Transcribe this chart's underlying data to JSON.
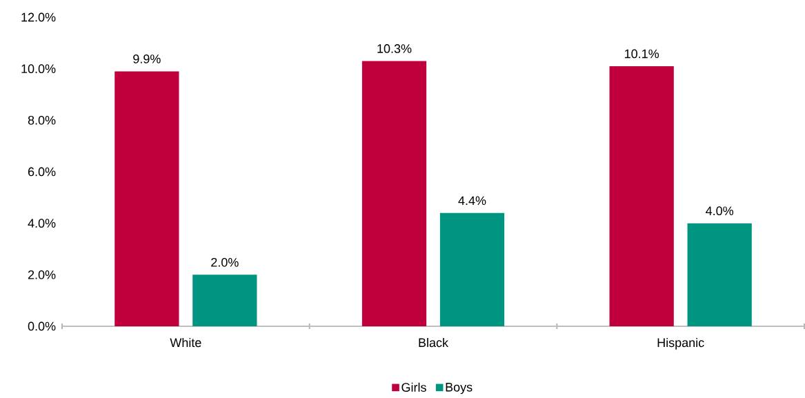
{
  "chart_data": {
    "type": "bar",
    "categories": [
      "White",
      "Black",
      "Hispanic"
    ],
    "series": [
      {
        "name": "Girls",
        "color": "#c0003c",
        "values": [
          9.9,
          10.3,
          10.1
        ],
        "value_labels": [
          "9.9%",
          "10.3%",
          "10.1%"
        ]
      },
      {
        "name": "Boys",
        "color": "#009580",
        "values": [
          2.0,
          4.4,
          4.0
        ],
        "value_labels": [
          "2.0%",
          "4.4%",
          "4.0%"
        ]
      }
    ],
    "ylim": [
      0,
      12
    ],
    "yticks": [
      {
        "value": 0,
        "label": "0.0%"
      },
      {
        "value": 2,
        "label": "2.0%"
      },
      {
        "value": 4,
        "label": "4.0%"
      },
      {
        "value": 6,
        "label": "6.0%"
      },
      {
        "value": 8,
        "label": "8.0%"
      },
      {
        "value": 10,
        "label": "10.0%"
      },
      {
        "value": 12,
        "label": "12.0%"
      }
    ],
    "grid": false,
    "legend": "bottom"
  }
}
